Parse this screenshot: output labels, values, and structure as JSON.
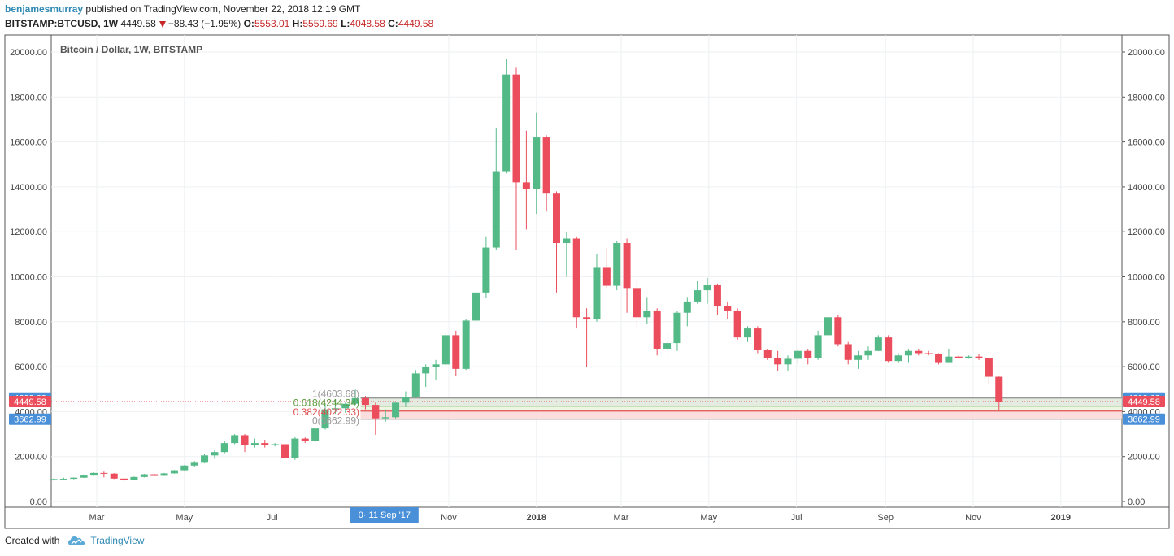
{
  "header": {
    "author": "benjamesmurray",
    "published": "published on TradingView.com, November 22, 2018 12:19 GMT",
    "symbol": "BITSTAMP:BTCUSD, 1W",
    "last": "4449.58",
    "change": "−88.43 (−1.95%)",
    "open_label": "O:",
    "open": "5553.01",
    "high_label": "H:",
    "high": "5559.69",
    "low_label": "L:",
    "low": "4048.58",
    "close_label": "C:",
    "close": "4449.58"
  },
  "footer": {
    "created_with": "Created with",
    "brand": "TradingView"
  },
  "colors": {
    "up": "#53b987",
    "down": "#eb4d5c",
    "grid": "#eef0f2",
    "accent": "#4a90d9",
    "fib_green": "#5a9a3c",
    "fib_red": "#e05050"
  },
  "chart_data": {
    "type": "candlestick",
    "title": "Bitcoin / Dollar, 1W, BITSTAMP",
    "ylim": [
      0,
      20000
    ],
    "y_ticks": [
      "0.00",
      "2000.00",
      "4000.00",
      "6000.00",
      "8000.00",
      "10000.00",
      "12000.00",
      "14000.00",
      "16000.00",
      "18000.00",
      "20000.00"
    ],
    "x_ticks": [
      {
        "label": "Mar",
        "date": "2017-03-01"
      },
      {
        "label": "May",
        "date": "2017-05-01"
      },
      {
        "label": "Jul",
        "date": "2017-07-01"
      },
      {
        "label": "Nov",
        "date": "2017-11-01"
      },
      {
        "label": "2018",
        "date": "2018-01-01"
      },
      {
        "label": "Mar",
        "date": "2018-03-01"
      },
      {
        "label": "May",
        "date": "2018-05-01"
      },
      {
        "label": "Jul",
        "date": "2018-07-01"
      },
      {
        "label": "Sep",
        "date": "2018-09-01"
      },
      {
        "label": "Nov",
        "date": "2018-11-01"
      },
      {
        "label": "2019",
        "date": "2019-01-01"
      }
    ],
    "x_range": [
      "2017-01-30",
      "2019-01-30"
    ],
    "cursor_label": "0· 11 Sep '17",
    "cursor_date": "2017-09-11",
    "price_labels_left": [
      {
        "text": "4603.68",
        "value": 4603.68,
        "color": "#4a90d9"
      },
      {
        "text": "4449.58",
        "value": 4449.58,
        "color": "#eb4d5c"
      },
      {
        "text": "3662.99",
        "value": 3662.99,
        "color": "#4a90d9"
      }
    ],
    "price_labels_right": [
      {
        "text": "4603.68",
        "value": 4603.68,
        "color": "#4a90d9"
      },
      {
        "text": "4449.58",
        "value": 4449.58,
        "color": "#eb4d5c"
      },
      {
        "text": "3662.99",
        "value": 3662.99,
        "color": "#4a90d9"
      }
    ],
    "fib_levels": [
      {
        "label": "1(4603.68)",
        "value": 4603.68,
        "color": "#999999"
      },
      {
        "label": "0.618(4244.34)",
        "value": 4244.34,
        "color": "#5a9a3c"
      },
      {
        "label": "0.382(4022.33)",
        "value": 4022.33,
        "color": "#e05050"
      },
      {
        "label": "0(3662.99)",
        "value": 3662.99,
        "color": "#999999"
      }
    ],
    "last_price": 4449.58,
    "candles": [
      {
        "d": "2017-01-30",
        "o": 965,
        "h": 1020,
        "l": 930,
        "c": 1000
      },
      {
        "d": "2017-02-06",
        "o": 1000,
        "h": 1060,
        "l": 960,
        "c": 1010
      },
      {
        "d": "2017-02-13",
        "o": 1010,
        "h": 1070,
        "l": 990,
        "c": 1060
      },
      {
        "d": "2017-02-20",
        "o": 1060,
        "h": 1200,
        "l": 1050,
        "c": 1190
      },
      {
        "d": "2017-02-27",
        "o": 1190,
        "h": 1290,
        "l": 1180,
        "c": 1270
      },
      {
        "d": "2017-03-06",
        "o": 1270,
        "h": 1330,
        "l": 1070,
        "c": 1240
      },
      {
        "d": "2017-03-13",
        "o": 1240,
        "h": 1260,
        "l": 1000,
        "c": 1020
      },
      {
        "d": "2017-03-20",
        "o": 1020,
        "h": 1060,
        "l": 890,
        "c": 970
      },
      {
        "d": "2017-03-27",
        "o": 970,
        "h": 1110,
        "l": 950,
        "c": 1090
      },
      {
        "d": "2017-04-03",
        "o": 1090,
        "h": 1230,
        "l": 1070,
        "c": 1210
      },
      {
        "d": "2017-04-10",
        "o": 1210,
        "h": 1240,
        "l": 1140,
        "c": 1180
      },
      {
        "d": "2017-04-17",
        "o": 1180,
        "h": 1270,
        "l": 1170,
        "c": 1250
      },
      {
        "d": "2017-04-24",
        "o": 1250,
        "h": 1400,
        "l": 1240,
        "c": 1390
      },
      {
        "d": "2017-05-01",
        "o": 1390,
        "h": 1620,
        "l": 1380,
        "c": 1600
      },
      {
        "d": "2017-05-08",
        "o": 1600,
        "h": 1800,
        "l": 1550,
        "c": 1760
      },
      {
        "d": "2017-05-15",
        "o": 1760,
        "h": 2100,
        "l": 1740,
        "c": 2050
      },
      {
        "d": "2017-05-22",
        "o": 2050,
        "h": 2300,
        "l": 1900,
        "c": 2200
      },
      {
        "d": "2017-05-29",
        "o": 2200,
        "h": 2700,
        "l": 2150,
        "c": 2600
      },
      {
        "d": "2017-06-05",
        "o": 2600,
        "h": 3000,
        "l": 2550,
        "c": 2950
      },
      {
        "d": "2017-06-12",
        "o": 2950,
        "h": 3000,
        "l": 2200,
        "c": 2500
      },
      {
        "d": "2017-06-19",
        "o": 2500,
        "h": 2800,
        "l": 2400,
        "c": 2600
      },
      {
        "d": "2017-06-26",
        "o": 2600,
        "h": 2750,
        "l": 2400,
        "c": 2500
      },
      {
        "d": "2017-07-03",
        "o": 2500,
        "h": 2600,
        "l": 2450,
        "c": 2550
      },
      {
        "d": "2017-07-10",
        "o": 2550,
        "h": 2600,
        "l": 1900,
        "c": 1950
      },
      {
        "d": "2017-07-17",
        "o": 1950,
        "h": 2900,
        "l": 1850,
        "c": 2800
      },
      {
        "d": "2017-07-24",
        "o": 2800,
        "h": 2850,
        "l": 2600,
        "c": 2700
      },
      {
        "d": "2017-07-31",
        "o": 2700,
        "h": 3300,
        "l": 2650,
        "c": 3250
      },
      {
        "d": "2017-08-07",
        "o": 3250,
        "h": 4300,
        "l": 3200,
        "c": 4100
      },
      {
        "d": "2017-08-14",
        "o": 4100,
        "h": 4500,
        "l": 3900,
        "c": 4150
      },
      {
        "d": "2017-08-21",
        "o": 4150,
        "h": 4400,
        "l": 3950,
        "c": 4350
      },
      {
        "d": "2017-08-28",
        "o": 4350,
        "h": 4980,
        "l": 4300,
        "c": 4600
      },
      {
        "d": "2017-09-04",
        "o": 4600,
        "h": 4700,
        "l": 4100,
        "c": 4300
      },
      {
        "d": "2017-09-11",
        "o": 4300,
        "h": 4400,
        "l": 2970,
        "c": 3700
      },
      {
        "d": "2017-09-18",
        "o": 3700,
        "h": 4100,
        "l": 3550,
        "c": 3750
      },
      {
        "d": "2017-09-25",
        "o": 3750,
        "h": 4400,
        "l": 3700,
        "c": 4400
      },
      {
        "d": "2017-10-02",
        "o": 4400,
        "h": 4900,
        "l": 4200,
        "c": 4650
      },
      {
        "d": "2017-10-09",
        "o": 4650,
        "h": 5850,
        "l": 4600,
        "c": 5700
      },
      {
        "d": "2017-10-16",
        "o": 5700,
        "h": 6100,
        "l": 5100,
        "c": 6000
      },
      {
        "d": "2017-10-23",
        "o": 6000,
        "h": 6300,
        "l": 5400,
        "c": 6100
      },
      {
        "d": "2017-10-30",
        "o": 6100,
        "h": 7500,
        "l": 6050,
        "c": 7400
      },
      {
        "d": "2017-11-06",
        "o": 7400,
        "h": 7600,
        "l": 5600,
        "c": 5900
      },
      {
        "d": "2017-11-13",
        "o": 5900,
        "h": 8100,
        "l": 5850,
        "c": 8050
      },
      {
        "d": "2017-11-20",
        "o": 8050,
        "h": 9400,
        "l": 7900,
        "c": 9300
      },
      {
        "d": "2017-11-27",
        "o": 9300,
        "h": 11800,
        "l": 9050,
        "c": 11300
      },
      {
        "d": "2017-12-04",
        "o": 11300,
        "h": 16600,
        "l": 11200,
        "c": 14700
      },
      {
        "d": "2017-12-11",
        "o": 14700,
        "h": 19700,
        "l": 14600,
        "c": 19000
      },
      {
        "d": "2017-12-18",
        "o": 19000,
        "h": 19300,
        "l": 11200,
        "c": 14200
      },
      {
        "d": "2017-12-25",
        "o": 14200,
        "h": 16500,
        "l": 12100,
        "c": 13900
      },
      {
        "d": "2018-01-01",
        "o": 13900,
        "h": 17300,
        "l": 12800,
        "c": 16200
      },
      {
        "d": "2018-01-08",
        "o": 16200,
        "h": 16300,
        "l": 12900,
        "c": 13700
      },
      {
        "d": "2018-01-15",
        "o": 13700,
        "h": 13800,
        "l": 9300,
        "c": 11500
      },
      {
        "d": "2018-01-22",
        "o": 11500,
        "h": 12000,
        "l": 10000,
        "c": 11700
      },
      {
        "d": "2018-01-29",
        "o": 11700,
        "h": 11800,
        "l": 7700,
        "c": 8200
      },
      {
        "d": "2018-02-05",
        "o": 8200,
        "h": 8600,
        "l": 6000,
        "c": 8100
      },
      {
        "d": "2018-02-12",
        "o": 8100,
        "h": 11000,
        "l": 8000,
        "c": 10400
      },
      {
        "d": "2018-02-19",
        "o": 10400,
        "h": 11300,
        "l": 9500,
        "c": 9600
      },
      {
        "d": "2018-02-26",
        "o": 9600,
        "h": 11600,
        "l": 9400,
        "c": 11500
      },
      {
        "d": "2018-03-05",
        "o": 11500,
        "h": 11700,
        "l": 8400,
        "c": 9500
      },
      {
        "d": "2018-03-12",
        "o": 9500,
        "h": 9900,
        "l": 7700,
        "c": 8200
      },
      {
        "d": "2018-03-19",
        "o": 8200,
        "h": 9100,
        "l": 7900,
        "c": 8500
      },
      {
        "d": "2018-03-26",
        "o": 8500,
        "h": 8600,
        "l": 6500,
        "c": 6800
      },
      {
        "d": "2018-04-02",
        "o": 6800,
        "h": 7500,
        "l": 6600,
        "c": 7050
      },
      {
        "d": "2018-04-09",
        "o": 7050,
        "h": 8500,
        "l": 6700,
        "c": 8400
      },
      {
        "d": "2018-04-16",
        "o": 8400,
        "h": 9100,
        "l": 7800,
        "c": 8900
      },
      {
        "d": "2018-04-23",
        "o": 8900,
        "h": 9800,
        "l": 8800,
        "c": 9400
      },
      {
        "d": "2018-04-30",
        "o": 9400,
        "h": 9950,
        "l": 8800,
        "c": 9650
      },
      {
        "d": "2018-05-07",
        "o": 9650,
        "h": 9700,
        "l": 8300,
        "c": 8700
      },
      {
        "d": "2018-05-14",
        "o": 8700,
        "h": 8900,
        "l": 8100,
        "c": 8500
      },
      {
        "d": "2018-05-21",
        "o": 8500,
        "h": 8600,
        "l": 7200,
        "c": 7300
      },
      {
        "d": "2018-05-28",
        "o": 7300,
        "h": 7800,
        "l": 7100,
        "c": 7700
      },
      {
        "d": "2018-06-04",
        "o": 7700,
        "h": 7800,
        "l": 6600,
        "c": 6750
      },
      {
        "d": "2018-06-11",
        "o": 6750,
        "h": 6800,
        "l": 6300,
        "c": 6400
      },
      {
        "d": "2018-06-18",
        "o": 6400,
        "h": 6700,
        "l": 5800,
        "c": 6100
      },
      {
        "d": "2018-06-25",
        "o": 6100,
        "h": 6500,
        "l": 5800,
        "c": 6350
      },
      {
        "d": "2018-07-02",
        "o": 6350,
        "h": 6800,
        "l": 6100,
        "c": 6700
      },
      {
        "d": "2018-07-09",
        "o": 6700,
        "h": 6800,
        "l": 6100,
        "c": 6400
      },
      {
        "d": "2018-07-16",
        "o": 6400,
        "h": 7600,
        "l": 6300,
        "c": 7400
      },
      {
        "d": "2018-07-23",
        "o": 7400,
        "h": 8500,
        "l": 7300,
        "c": 8200
      },
      {
        "d": "2018-07-30",
        "o": 8200,
        "h": 8300,
        "l": 6900,
        "c": 7000
      },
      {
        "d": "2018-08-06",
        "o": 7000,
        "h": 7100,
        "l": 6100,
        "c": 6300
      },
      {
        "d": "2018-08-13",
        "o": 6300,
        "h": 6700,
        "l": 5900,
        "c": 6500
      },
      {
        "d": "2018-08-20",
        "o": 6500,
        "h": 6900,
        "l": 6300,
        "c": 6700
      },
      {
        "d": "2018-08-27",
        "o": 6700,
        "h": 7400,
        "l": 6700,
        "c": 7300
      },
      {
        "d": "2018-09-03",
        "o": 7300,
        "h": 7400,
        "l": 6200,
        "c": 6250
      },
      {
        "d": "2018-09-10",
        "o": 6250,
        "h": 6600,
        "l": 6150,
        "c": 6500
      },
      {
        "d": "2018-09-17",
        "o": 6500,
        "h": 6800,
        "l": 6200,
        "c": 6700
      },
      {
        "d": "2018-09-24",
        "o": 6700,
        "h": 6800,
        "l": 6500,
        "c": 6600
      },
      {
        "d": "2018-10-01",
        "o": 6600,
        "h": 6700,
        "l": 6500,
        "c": 6550
      },
      {
        "d": "2018-10-08",
        "o": 6550,
        "h": 6600,
        "l": 6100,
        "c": 6200
      },
      {
        "d": "2018-10-15",
        "o": 6200,
        "h": 6800,
        "l": 6200,
        "c": 6450
      },
      {
        "d": "2018-10-22",
        "o": 6450,
        "h": 6500,
        "l": 6350,
        "c": 6400
      },
      {
        "d": "2018-10-29",
        "o": 6400,
        "h": 6500,
        "l": 6350,
        "c": 6450
      },
      {
        "d": "2018-11-05",
        "o": 6450,
        "h": 6550,
        "l": 6300,
        "c": 6380
      },
      {
        "d": "2018-11-12",
        "o": 6380,
        "h": 6400,
        "l": 5200,
        "c": 5550
      },
      {
        "d": "2018-11-19",
        "o": 5550,
        "h": 5560,
        "l": 4048,
        "c": 4450
      }
    ]
  }
}
